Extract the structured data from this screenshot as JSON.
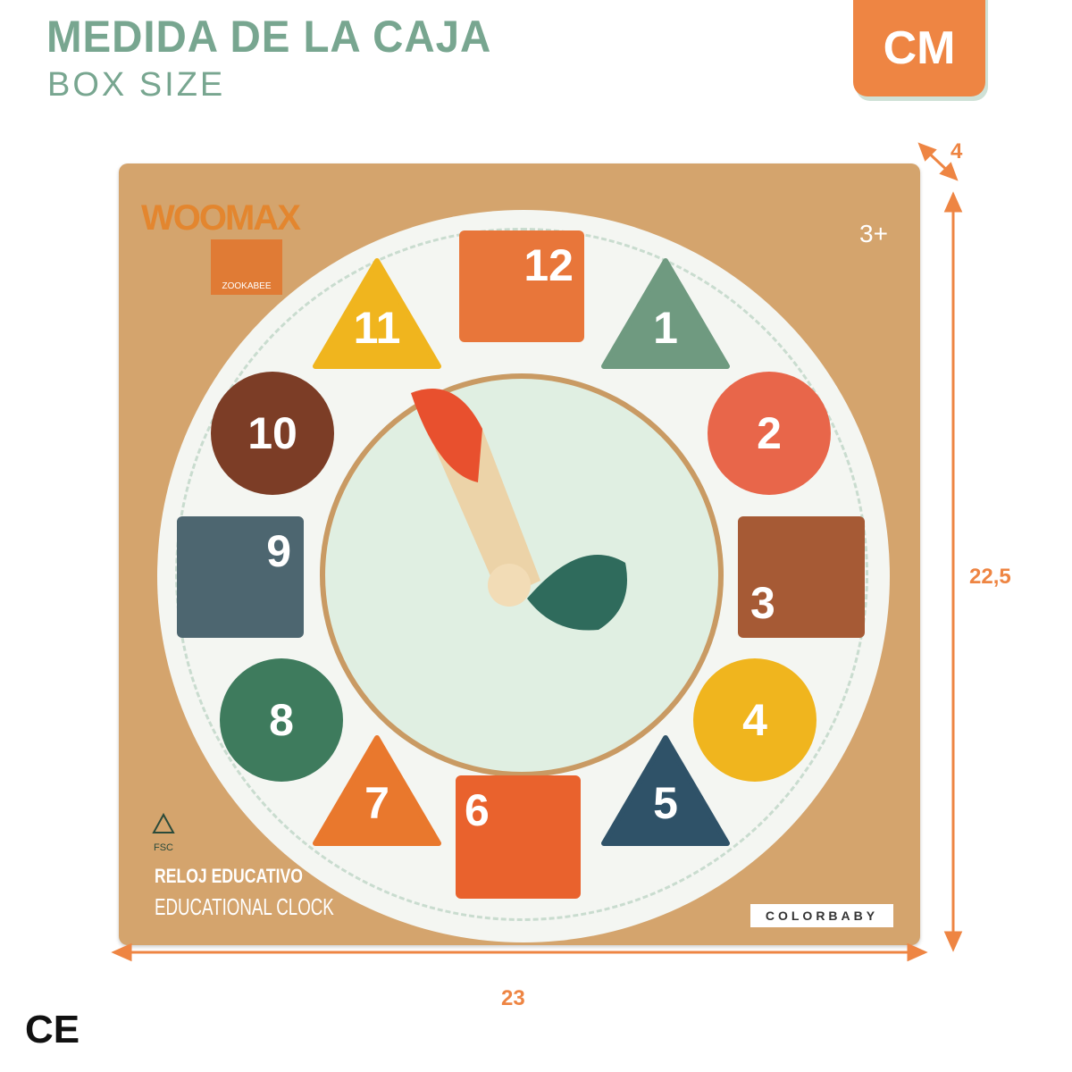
{
  "header": {
    "title": "MEDIDA DE LA CAJA",
    "subtitle": "BOX SIZE",
    "unit": "CM"
  },
  "dimensions": {
    "depth": "4",
    "height": "22,5",
    "width": "23"
  },
  "box": {
    "brand_logo": "WOOMAX",
    "sub_brand": "ZOOKABEE",
    "age": "3+",
    "certification": "FSC",
    "product_name_es": "RELOJ EDUCATIVO",
    "product_name_en": "EDUCATIONAL CLOCK",
    "manufacturer": "COLORBABY",
    "clock_numbers": [
      "12",
      "1",
      "2",
      "3",
      "4",
      "5",
      "6",
      "7",
      "8",
      "9",
      "10",
      "11"
    ]
  },
  "marking": "CE",
  "colors": {
    "accent": "#ee8543",
    "title": "#78a690",
    "cardboard": "#d4a46d"
  }
}
